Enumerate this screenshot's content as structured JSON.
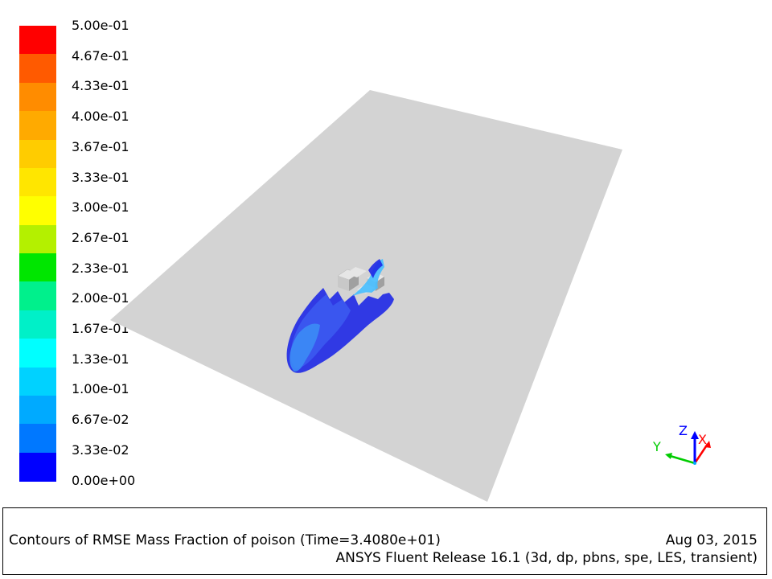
{
  "colorbar": {
    "labels": [
      "5.00e-01",
      "4.67e-01",
      "4.33e-01",
      "4.00e-01",
      "3.67e-01",
      "3.33e-01",
      "3.00e-01",
      "2.67e-01",
      "2.33e-01",
      "2.00e-01",
      "1.67e-01",
      "1.33e-01",
      "1.00e-01",
      "6.67e-02",
      "3.33e-02",
      "0.00e+00"
    ],
    "colors": [
      "#ff0000",
      "#ff5a00",
      "#ff8c00",
      "#ffaa00",
      "#ffcc00",
      "#ffe600",
      "#ffff00",
      "#b4f000",
      "#00e600",
      "#00f08c",
      "#00f0c8",
      "#00ffff",
      "#00d2ff",
      "#00aaff",
      "#0078ff",
      "#0000ff"
    ]
  },
  "scene": {
    "plane_color": "#d3d3d3",
    "plume_colors": [
      "#1e28e6",
      "#3c5af0",
      "#3c8cf5",
      "#46beff"
    ]
  },
  "axes": {
    "x_label": "X",
    "y_label": "Y",
    "z_label": "Z",
    "x_color": "#ff0000",
    "y_color": "#00cc00",
    "z_color": "#0000ff"
  },
  "info": {
    "title": "Contours of RMSE Mass Fraction of poison  (Time=3.4080e+01)",
    "date": "Aug 03, 2015",
    "release": "ANSYS Fluent Release 16.1 (3d, dp, pbns, spe, LES, transient)"
  }
}
